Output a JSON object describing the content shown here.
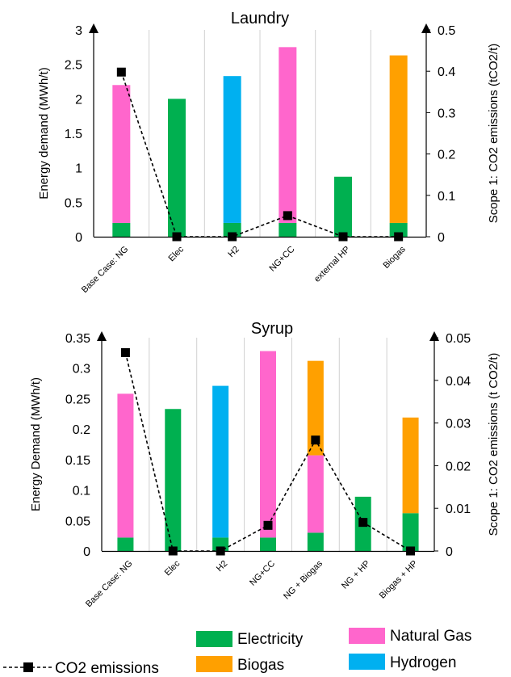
{
  "colors": {
    "electricity": "#00b050",
    "natural_gas": "#ff66cc",
    "hydrogen": "#00b0f0",
    "biogas": "#ffa000",
    "co2": "#000000",
    "grid": "#d0d0d0"
  },
  "legend": {
    "electricity": "Electricity",
    "natural_gas": "Natural Gas",
    "biogas": "Biogas",
    "hydrogen": "Hydrogen",
    "co2": "CO2 emissions"
  },
  "chart_data": [
    {
      "type": "bar",
      "title": "Laundry",
      "ylabel": "Energy demand (MWh/t)",
      "y2label": "Scope 1: CO2 emissions (tCO2/t)",
      "ylim": [
        0,
        3
      ],
      "y2lim": [
        0,
        0.5
      ],
      "yticks": [
        "0",
        "0.5",
        "1",
        "1.5",
        "2",
        "2.5",
        "3"
      ],
      "y2ticks": [
        "0",
        "0.1",
        "0.2",
        "0.3",
        "0.4",
        "0.5"
      ],
      "categories": [
        "Base Case: NG",
        "Elec",
        "H2",
        "NG+CC",
        "external HP",
        "Biogas"
      ],
      "series": [
        {
          "name": "Electricity",
          "color_key": "electricity",
          "values": [
            0.2,
            2.0,
            0.2,
            0.2,
            0.87,
            0.2
          ]
        },
        {
          "name": "Natural Gas",
          "color_key": "natural_gas",
          "values": [
            2.0,
            0,
            0,
            2.55,
            0,
            0
          ]
        },
        {
          "name": "Hydrogen",
          "color_key": "hydrogen",
          "values": [
            0,
            0,
            2.13,
            0,
            0,
            0
          ]
        },
        {
          "name": "Biogas",
          "color_key": "biogas",
          "values": [
            0,
            0,
            0,
            0,
            0,
            2.43
          ]
        }
      ],
      "co2": {
        "name": "CO2 emissions",
        "values": [
          0.398,
          0,
          0,
          0.051,
          0,
          0
        ]
      }
    },
    {
      "type": "bar",
      "title": "Syrup",
      "ylabel": "Energy Demand  (MWh/t)",
      "y2label": "Scope 1: CO2 emissions (t CO2/t)",
      "ylim": [
        0,
        0.35
      ],
      "y2lim": [
        0,
        0.05
      ],
      "yticks": [
        "0",
        "0.05",
        "0.1",
        "0.15",
        "0.2",
        "0.25",
        "0.3",
        "0.35"
      ],
      "y2ticks": [
        "0",
        "0.01",
        "0.02",
        "0.03",
        "0.04",
        "0.05"
      ],
      "categories": [
        "Base Case: NG",
        "Elec",
        "H2",
        "NG+CC",
        "NG + Biogas",
        "NG + HP",
        "Biogas + HP"
      ],
      "series": [
        {
          "name": "Electricity",
          "color_key": "electricity",
          "values": [
            0.022,
            0.233,
            0.022,
            0.022,
            0.03,
            0.089,
            0.062
          ]
        },
        {
          "name": "Natural Gas",
          "color_key": "natural_gas",
          "values": [
            0.236,
            0,
            0,
            0.306,
            0.127,
            0,
            0
          ]
        },
        {
          "name": "Hydrogen",
          "color_key": "hydrogen",
          "values": [
            0,
            0,
            0.249,
            0,
            0,
            0,
            0
          ]
        },
        {
          "name": "Biogas",
          "color_key": "biogas",
          "values": [
            0,
            0,
            0,
            0,
            0.155,
            0,
            0.157
          ]
        }
      ],
      "co2": {
        "name": "CO2 emissions",
        "values": [
          0.0465,
          0,
          0,
          0.006,
          0.026,
          0.0067,
          0
        ]
      }
    }
  ]
}
